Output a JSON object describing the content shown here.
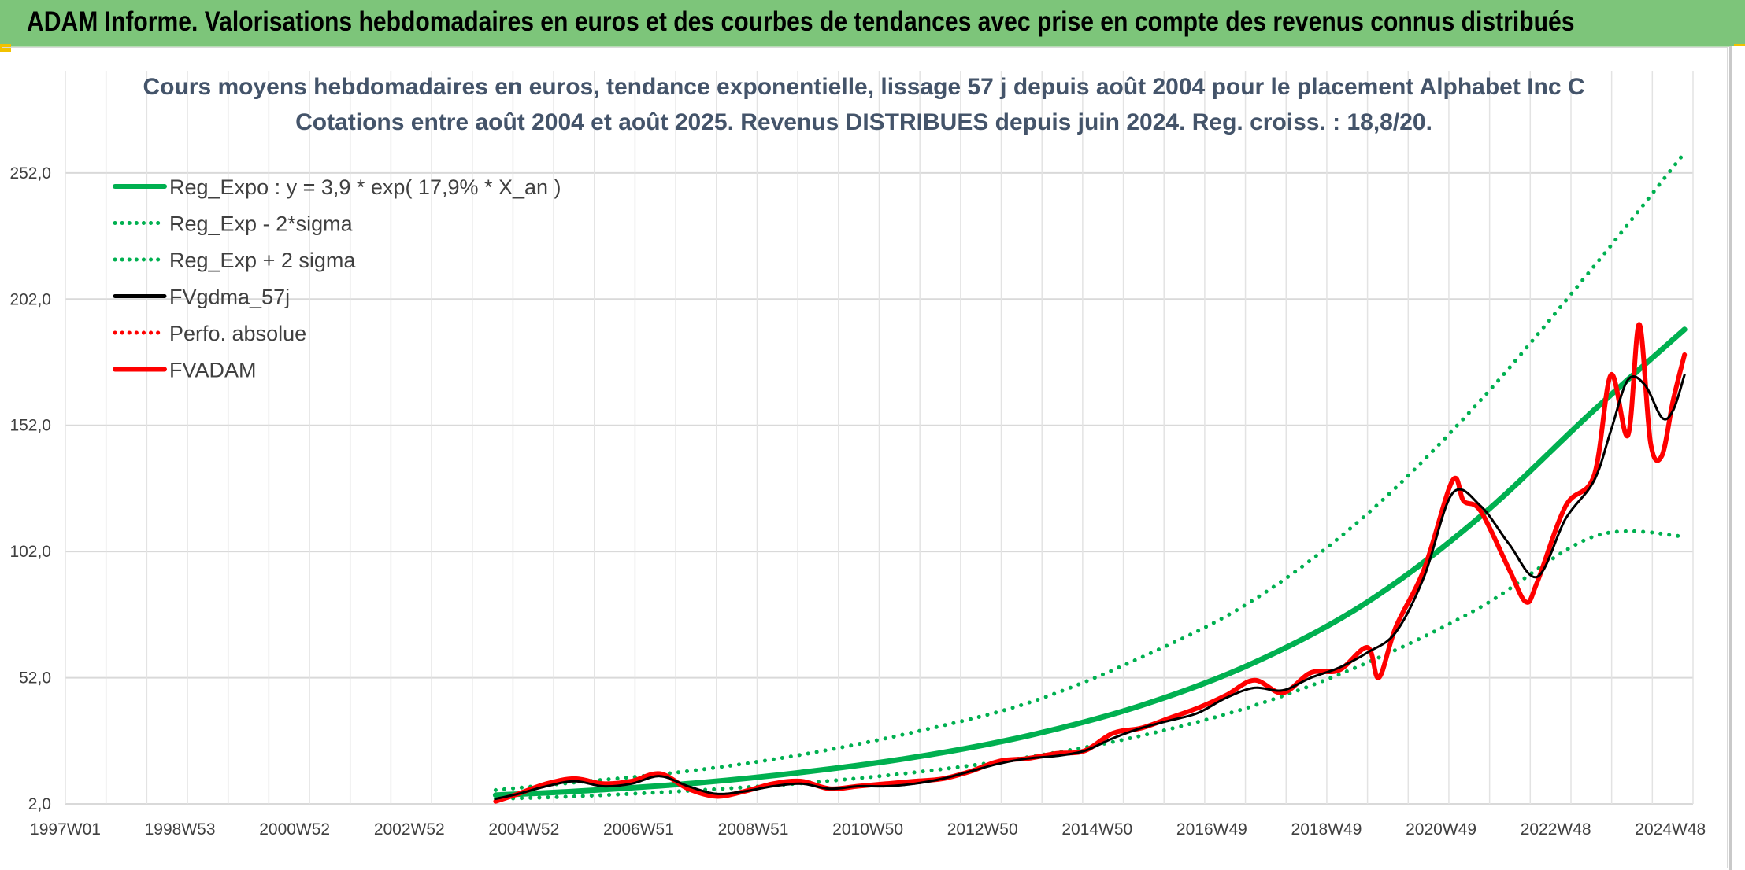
{
  "header": {
    "title": "ADAM Informe. Valorisations hebdomadaires en euros et des courbes de tendances avec prise en compte des revenus connus distribués"
  },
  "colors": {
    "header_bg": "#7dc57a",
    "trend_green": "#00b050",
    "smooth_black": "#000000",
    "fvadam_red": "#ff0000"
  },
  "chart_data": {
    "type": "line",
    "title": "Cours moyens hebdomadaires en euros, tendance exponentielle, lissage 57 j depuis août 2004 pour le placement Alphabet Inc C",
    "subtitle": "Cotations entre août 2004 et août 2025. Revenus DISTRIBUES depuis juin 2024. Reg. croiss. : 18,8/20.",
    "xlabel": "",
    "ylabel": "",
    "x_ticks": [
      "1997W01",
      "1998W53",
      "2000W52",
      "2002W52",
      "2004W52",
      "2006W51",
      "2008W51",
      "2010W50",
      "2012W50",
      "2014W50",
      "2016W49",
      "2018W49",
      "2020W49",
      "2022W48",
      "2024W48"
    ],
    "xlim": [
      1997.0,
      2025.75
    ],
    "y_ticks": [
      "2,0",
      "52,0",
      "102,0",
      "152,0",
      "202,0",
      "252,0"
    ],
    "ylim": [
      2,
      280
    ],
    "grid": true,
    "legend_position": "top-left",
    "regression": {
      "a": 3.9,
      "rate": 0.179,
      "x0": 2004.0
    },
    "series": [
      {
        "name": "Reg_Expo : y = 3,9 * exp( 17,9% *  X_an )",
        "color": "#00b050",
        "style": "solid",
        "width": 7,
        "x": [
          2004.6,
          2006,
          2008,
          2010,
          2012,
          2014,
          2016,
          2018,
          2020,
          2022,
          2024,
          2025.6
        ],
        "values": [
          5.5,
          7.0,
          10.0,
          14.5,
          20.5,
          29.0,
          41.0,
          58.0,
          82.0,
          116.0,
          158.0,
          190.0
        ]
      },
      {
        "name": "Reg_Exp - 2*sigma",
        "color": "#00b050",
        "style": "dotted",
        "width": 5,
        "x": [
          2004.6,
          2006,
          2008,
          2010,
          2012,
          2014,
          2016,
          2018,
          2020,
          2022,
          2024,
          2025.6
        ],
        "values": [
          4.0,
          5.0,
          7.2,
          10.2,
          14.5,
          20.5,
          29.0,
          41.0,
          58.0,
          80.0,
          108.0,
          108.0
        ]
      },
      {
        "name": "Reg_Exp + 2 sigma",
        "color": "#00b050",
        "style": "dotted",
        "width": 5,
        "x": [
          2004.6,
          2006,
          2008,
          2010,
          2012,
          2014,
          2016,
          2018,
          2020,
          2022,
          2024,
          2025.6
        ],
        "values": [
          7.5,
          10.5,
          15.0,
          21.5,
          30.5,
          42.0,
          60.0,
          83.0,
          117.0,
          162.0,
          215.0,
          260.0
        ]
      },
      {
        "name": "FVgdma_57j",
        "color": "#000000",
        "style": "solid",
        "width": 3,
        "x": [
          2004.6,
          2005.0,
          2005.5,
          2006.0,
          2006.5,
          2007.0,
          2007.5,
          2008.0,
          2008.5,
          2009.0,
          2009.5,
          2010.0,
          2010.5,
          2011.0,
          2011.5,
          2012.0,
          2012.5,
          2013.0,
          2013.5,
          2014.0,
          2014.5,
          2015.0,
          2015.5,
          2016.0,
          2016.5,
          2017.0,
          2017.5,
          2018.0,
          2018.5,
          2019.0,
          2019.5,
          2020.0,
          2020.5,
          2021.0,
          2021.5,
          2022.0,
          2022.5,
          2023.0,
          2023.5,
          2024.0,
          2024.3,
          2024.6,
          2024.9,
          2025.2,
          2025.4,
          2025.6
        ],
        "values": [
          4,
          6,
          9,
          11,
          9,
          10,
          13,
          9,
          6,
          7,
          9,
          10,
          8,
          9,
          9,
          10,
          12,
          15,
          18,
          20,
          21,
          23,
          28,
          32,
          35,
          38,
          44,
          48,
          47,
          52,
          56,
          62,
          70,
          92,
          125,
          120,
          105,
          92,
          115,
          130,
          150,
          170,
          168,
          155,
          158,
          172
        ]
      },
      {
        "name": "Perfo. absolue",
        "color": "#ff0000",
        "style": "dotted",
        "width": 3,
        "x": [
          2004.6,
          2005.0,
          2005.5,
          2006.0,
          2006.5,
          2007.0,
          2007.5,
          2008.0,
          2008.5,
          2009.0,
          2009.5,
          2010.0,
          2010.5,
          2011.0,
          2011.5,
          2012.0,
          2012.5,
          2013.0,
          2013.5,
          2014.0,
          2014.5,
          2015.0,
          2015.5,
          2016.0,
          2016.5,
          2017.0,
          2017.5,
          2018.0,
          2018.5,
          2019.0,
          2019.5,
          2020.0,
          2020.5,
          2021.0,
          2021.5,
          2022.0,
          2022.5,
          2023.0,
          2023.5,
          2024.0,
          2024.3,
          2024.6,
          2024.9,
          2025.2,
          2025.4,
          2025.6
        ],
        "values": [
          4,
          6,
          9,
          11,
          9,
          10,
          13,
          9,
          6,
          7,
          9,
          10,
          8,
          9,
          9,
          10,
          12,
          15,
          18,
          20,
          21,
          23,
          28,
          32,
          35,
          38,
          44,
          48,
          47,
          52,
          56,
          62,
          70,
          92,
          125,
          120,
          105,
          92,
          115,
          130,
          150,
          170,
          168,
          155,
          158,
          172
        ]
      },
      {
        "name": "FVADAM",
        "color": "#ff0000",
        "style": "solid",
        "width": 6,
        "x": [
          2004.6,
          2005.0,
          2005.5,
          2006.0,
          2006.5,
          2007.0,
          2007.5,
          2008.0,
          2008.5,
          2009.0,
          2009.5,
          2010.0,
          2010.5,
          2011.0,
          2011.5,
          2012.0,
          2012.5,
          2013.0,
          2013.5,
          2014.0,
          2014.5,
          2015.0,
          2015.5,
          2016.0,
          2016.5,
          2017.0,
          2017.5,
          2018.0,
          2018.5,
          2019.0,
          2019.5,
          2020.0,
          2020.2,
          2020.5,
          2021.0,
          2021.5,
          2021.7,
          2022.0,
          2022.5,
          2022.8,
          2023.0,
          2023.5,
          2024.0,
          2024.3,
          2024.6,
          2024.8,
          2025.0,
          2025.2,
          2025.4,
          2025.6
        ],
        "values": [
          3,
          6,
          10,
          12,
          10,
          11,
          14,
          8,
          5,
          7,
          10,
          11,
          8,
          9,
          10,
          11,
          12,
          15,
          19,
          20,
          22,
          23,
          30,
          32,
          36,
          40,
          45,
          51,
          46,
          54,
          55,
          64,
          52,
          72,
          95,
          130,
          122,
          118,
          95,
          82,
          90,
          120,
          132,
          172,
          148,
          192,
          145,
          140,
          162,
          180
        ]
      }
    ]
  }
}
